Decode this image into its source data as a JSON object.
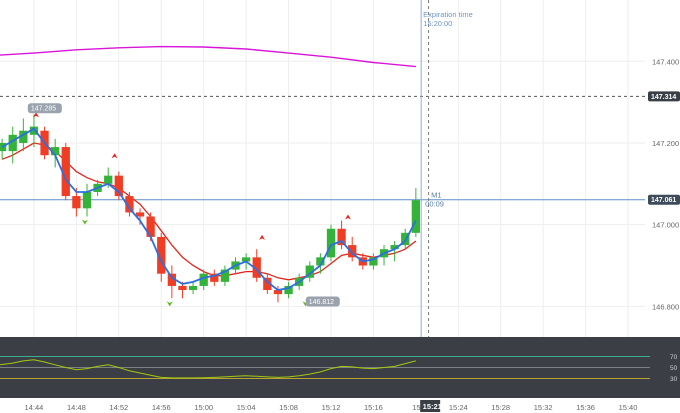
{
  "chart_data": {
    "type": "candlestick",
    "timeframe_label": "M1",
    "timer_label": "00:09",
    "expiration": {
      "label": "Expiration time",
      "time": "15:20:00"
    },
    "current_price_label": "147.061",
    "dashed_level_label": "147.314",
    "time_marker_label": "15:21",
    "price_ticks": [
      {
        "value": 147.4,
        "label": "147.400"
      },
      {
        "value": 147.2,
        "label": "147.200"
      },
      {
        "value": 147.0,
        "label": "147.000"
      },
      {
        "value": 146.8,
        "label": "146.800"
      }
    ],
    "time_ticks": [
      "14:44",
      "14:48",
      "14:52",
      "14:56",
      "15:00",
      "15:04",
      "15:08",
      "15:12",
      "15:16",
      "15:24",
      "15:28",
      "15:32",
      "15:36",
      "15:40"
    ],
    "time_tick_minutes": [
      44,
      48,
      52,
      56,
      60,
      64,
      68,
      72,
      76,
      84,
      88,
      92,
      96,
      100
    ],
    "ylim": [
      146.725,
      147.55
    ],
    "xlim_minutes": [
      40.8,
      101.6
    ],
    "current_price": 147.061,
    "dashed_level": 147.314,
    "expiration_minute": 81.2,
    "now_minute": 80.5,
    "high_label": {
      "text": "147.285",
      "minute": 43.8,
      "value": 147.285
    },
    "low_label": {
      "text": "146.812",
      "minute": 70.0,
      "value": 146.812
    },
    "candles": [
      {
        "t": 41.0,
        "o": 147.18,
        "h": 147.21,
        "l": 147.16,
        "c": 147.2
      },
      {
        "t": 42.0,
        "o": 147.18,
        "h": 147.24,
        "l": 147.15,
        "c": 147.22
      },
      {
        "t": 43.0,
        "o": 147.2,
        "h": 147.26,
        "l": 147.18,
        "c": 147.23
      },
      {
        "t": 44.0,
        "o": 147.22,
        "h": 147.27,
        "l": 147.19,
        "c": 147.24
      },
      {
        "t": 45.0,
        "o": 147.23,
        "h": 147.24,
        "l": 147.16,
        "c": 147.17
      },
      {
        "t": 46.0,
        "o": 147.17,
        "h": 147.21,
        "l": 147.14,
        "c": 147.19
      },
      {
        "t": 47.0,
        "o": 147.19,
        "h": 147.2,
        "l": 147.06,
        "c": 147.07
      },
      {
        "t": 48.0,
        "o": 147.07,
        "h": 147.09,
        "l": 147.02,
        "c": 147.04
      },
      {
        "t": 49.0,
        "o": 147.04,
        "h": 147.1,
        "l": 147.02,
        "c": 147.08
      },
      {
        "t": 50.0,
        "o": 147.08,
        "h": 147.11,
        "l": 147.07,
        "c": 147.1
      },
      {
        "t": 51.0,
        "o": 147.1,
        "h": 147.14,
        "l": 147.09,
        "c": 147.12
      },
      {
        "t": 52.0,
        "o": 147.12,
        "h": 147.13,
        "l": 147.06,
        "c": 147.07
      },
      {
        "t": 53.0,
        "o": 147.07,
        "h": 147.08,
        "l": 147.02,
        "c": 147.03
      },
      {
        "t": 54.0,
        "o": 147.03,
        "h": 147.04,
        "l": 147.0,
        "c": 147.02
      },
      {
        "t": 55.0,
        "o": 147.02,
        "h": 147.03,
        "l": 146.96,
        "c": 146.97
      },
      {
        "t": 56.0,
        "o": 146.97,
        "h": 146.98,
        "l": 146.86,
        "c": 146.88
      },
      {
        "t": 57.0,
        "o": 146.88,
        "h": 146.9,
        "l": 146.82,
        "c": 146.85
      },
      {
        "t": 58.0,
        "o": 146.85,
        "h": 146.86,
        "l": 146.82,
        "c": 146.84
      },
      {
        "t": 59.0,
        "o": 146.84,
        "h": 146.86,
        "l": 146.83,
        "c": 146.85
      },
      {
        "t": 60.0,
        "o": 146.85,
        "h": 146.89,
        "l": 146.84,
        "c": 146.88
      },
      {
        "t": 61.0,
        "o": 146.88,
        "h": 146.89,
        "l": 146.85,
        "c": 146.86
      },
      {
        "t": 62.0,
        "o": 146.86,
        "h": 146.9,
        "l": 146.85,
        "c": 146.89
      },
      {
        "t": 63.0,
        "o": 146.89,
        "h": 146.92,
        "l": 146.88,
        "c": 146.91
      },
      {
        "t": 64.0,
        "o": 146.91,
        "h": 146.93,
        "l": 146.89,
        "c": 146.92
      },
      {
        "t": 65.0,
        "o": 146.92,
        "h": 146.94,
        "l": 146.86,
        "c": 146.87
      },
      {
        "t": 66.0,
        "o": 146.87,
        "h": 146.88,
        "l": 146.83,
        "c": 146.84
      },
      {
        "t": 67.0,
        "o": 146.84,
        "h": 146.85,
        "l": 146.81,
        "c": 146.83
      },
      {
        "t": 68.0,
        "o": 146.83,
        "h": 146.86,
        "l": 146.82,
        "c": 146.85
      },
      {
        "t": 69.0,
        "o": 146.85,
        "h": 146.88,
        "l": 146.84,
        "c": 146.87
      },
      {
        "t": 70.0,
        "o": 146.87,
        "h": 146.91,
        "l": 146.86,
        "c": 146.9
      },
      {
        "t": 71.0,
        "o": 146.9,
        "h": 146.93,
        "l": 146.88,
        "c": 146.92
      },
      {
        "t": 72.0,
        "o": 146.92,
        "h": 147.0,
        "l": 146.91,
        "c": 146.99
      },
      {
        "t": 73.0,
        "o": 146.99,
        "h": 147.01,
        "l": 146.94,
        "c": 146.95
      },
      {
        "t": 74.0,
        "o": 146.95,
        "h": 146.97,
        "l": 146.91,
        "c": 146.92
      },
      {
        "t": 75.0,
        "o": 146.92,
        "h": 146.93,
        "l": 146.89,
        "c": 146.9
      },
      {
        "t": 76.0,
        "o": 146.9,
        "h": 146.93,
        "l": 146.89,
        "c": 146.92
      },
      {
        "t": 77.0,
        "o": 146.92,
        "h": 146.95,
        "l": 146.9,
        "c": 146.94
      },
      {
        "t": 78.0,
        "o": 146.94,
        "h": 146.96,
        "l": 146.91,
        "c": 146.95
      },
      {
        "t": 79.0,
        "o": 146.95,
        "h": 146.99,
        "l": 146.94,
        "c": 146.98
      },
      {
        "t": 80.0,
        "o": 146.98,
        "h": 147.09,
        "l": 146.97,
        "c": 147.06
      }
    ],
    "ma_fast": {
      "color": "#2c6fe0",
      "points": [
        [
          41,
          147.19
        ],
        [
          42,
          147.205
        ],
        [
          43,
          147.22
        ],
        [
          44,
          147.235
        ],
        [
          45,
          147.2
        ],
        [
          46,
          147.17
        ],
        [
          47,
          147.11
        ],
        [
          48,
          147.08
        ],
        [
          49,
          147.08
        ],
        [
          50,
          147.09
        ],
        [
          51,
          147.1
        ],
        [
          52,
          147.08
        ],
        [
          53,
          147.04
        ],
        [
          54,
          147.01
        ],
        [
          55,
          146.97
        ],
        [
          56,
          146.91
        ],
        [
          57,
          146.87
        ],
        [
          58,
          146.855
        ],
        [
          59,
          146.86
        ],
        [
          60,
          146.87
        ],
        [
          61,
          146.875
        ],
        [
          62,
          146.885
        ],
        [
          63,
          146.9
        ],
        [
          64,
          146.91
        ],
        [
          65,
          146.89
        ],
        [
          66,
          146.86
        ],
        [
          67,
          146.84
        ],
        [
          68,
          146.845
        ],
        [
          69,
          146.86
        ],
        [
          70,
          146.88
        ],
        [
          71,
          146.9
        ],
        [
          72,
          146.95
        ],
        [
          73,
          146.96
        ],
        [
          74,
          146.93
        ],
        [
          75,
          146.91
        ],
        [
          76,
          146.915
        ],
        [
          77,
          146.93
        ],
        [
          78,
          146.94
        ],
        [
          79,
          146.96
        ],
        [
          80,
          147.01
        ]
      ]
    },
    "ma_slow": {
      "color": "#e0261f",
      "points": [
        [
          41,
          147.16
        ],
        [
          42,
          147.17
        ],
        [
          43,
          147.185
        ],
        [
          44,
          147.2
        ],
        [
          45,
          147.195
        ],
        [
          46,
          147.18
        ],
        [
          47,
          147.155
        ],
        [
          48,
          147.13
        ],
        [
          49,
          147.115
        ],
        [
          50,
          147.105
        ],
        [
          51,
          147.1
        ],
        [
          52,
          147.09
        ],
        [
          53,
          147.07
        ],
        [
          54,
          147.05
        ],
        [
          55,
          147.02
        ],
        [
          56,
          146.985
        ],
        [
          57,
          146.95
        ],
        [
          58,
          146.92
        ],
        [
          59,
          146.9
        ],
        [
          60,
          146.885
        ],
        [
          61,
          146.875
        ],
        [
          62,
          146.875
        ],
        [
          63,
          146.88
        ],
        [
          64,
          146.885
        ],
        [
          65,
          146.885
        ],
        [
          66,
          146.88
        ],
        [
          67,
          146.87
        ],
        [
          68,
          146.865
        ],
        [
          69,
          146.87
        ],
        [
          70,
          146.875
        ],
        [
          71,
          146.885
        ],
        [
          72,
          146.905
        ],
        [
          73,
          146.925
        ],
        [
          74,
          146.93
        ],
        [
          75,
          146.925
        ],
        [
          76,
          146.92
        ],
        [
          77,
          146.925
        ],
        [
          78,
          146.93
        ],
        [
          79,
          146.94
        ],
        [
          80,
          146.96
        ]
      ]
    },
    "ma_long": {
      "color": "#d915d9",
      "points": [
        [
          40.8,
          147.415
        ],
        [
          44,
          147.42
        ],
        [
          48,
          147.428
        ],
        [
          52,
          147.433
        ],
        [
          56,
          147.436
        ],
        [
          60,
          147.435
        ],
        [
          64,
          147.43
        ],
        [
          68,
          147.42
        ],
        [
          72,
          147.41
        ],
        [
          76,
          147.397
        ],
        [
          80,
          147.387
        ]
      ]
    },
    "buy_arrows": [
      [
        44.2,
        147.27
      ],
      [
        51.6,
        147.17
      ],
      [
        65.5,
        146.97
      ],
      [
        73.6,
        147.02
      ]
    ],
    "sell_arrows": [
      [
        48.8,
        147.005
      ],
      [
        56.8,
        146.805
      ],
      [
        69.6,
        146.805
      ]
    ],
    "oscillator": {
      "color": "#a5c80f",
      "levels": [
        {
          "value": 70,
          "label": "70"
        },
        {
          "value": 50,
          "label": "50"
        },
        {
          "value": 30,
          "label": "30"
        }
      ],
      "range": [
        0,
        100
      ],
      "points": [
        [
          40.8,
          55
        ],
        [
          42,
          58
        ],
        [
          43,
          62
        ],
        [
          44,
          64
        ],
        [
          45,
          60
        ],
        [
          46,
          55
        ],
        [
          47,
          50
        ],
        [
          48,
          46
        ],
        [
          49,
          48
        ],
        [
          50,
          52
        ],
        [
          51,
          55
        ],
        [
          52,
          50
        ],
        [
          53,
          44
        ],
        [
          54,
          40
        ],
        [
          55,
          36
        ],
        [
          56,
          32
        ],
        [
          57,
          31
        ],
        [
          58,
          31
        ],
        [
          59,
          31
        ],
        [
          60,
          31.5
        ],
        [
          61,
          32
        ],
        [
          62,
          33
        ],
        [
          63,
          34
        ],
        [
          64,
          35
        ],
        [
          65,
          34
        ],
        [
          66,
          33
        ],
        [
          67,
          32
        ],
        [
          68,
          33
        ],
        [
          69,
          35
        ],
        [
          70,
          38
        ],
        [
          71,
          42
        ],
        [
          72,
          48
        ],
        [
          73,
          52
        ],
        [
          74,
          51
        ],
        [
          75,
          49
        ],
        [
          76,
          48
        ],
        [
          77,
          50
        ],
        [
          78,
          52
        ],
        [
          79,
          57
        ],
        [
          80,
          62
        ]
      ]
    }
  }
}
